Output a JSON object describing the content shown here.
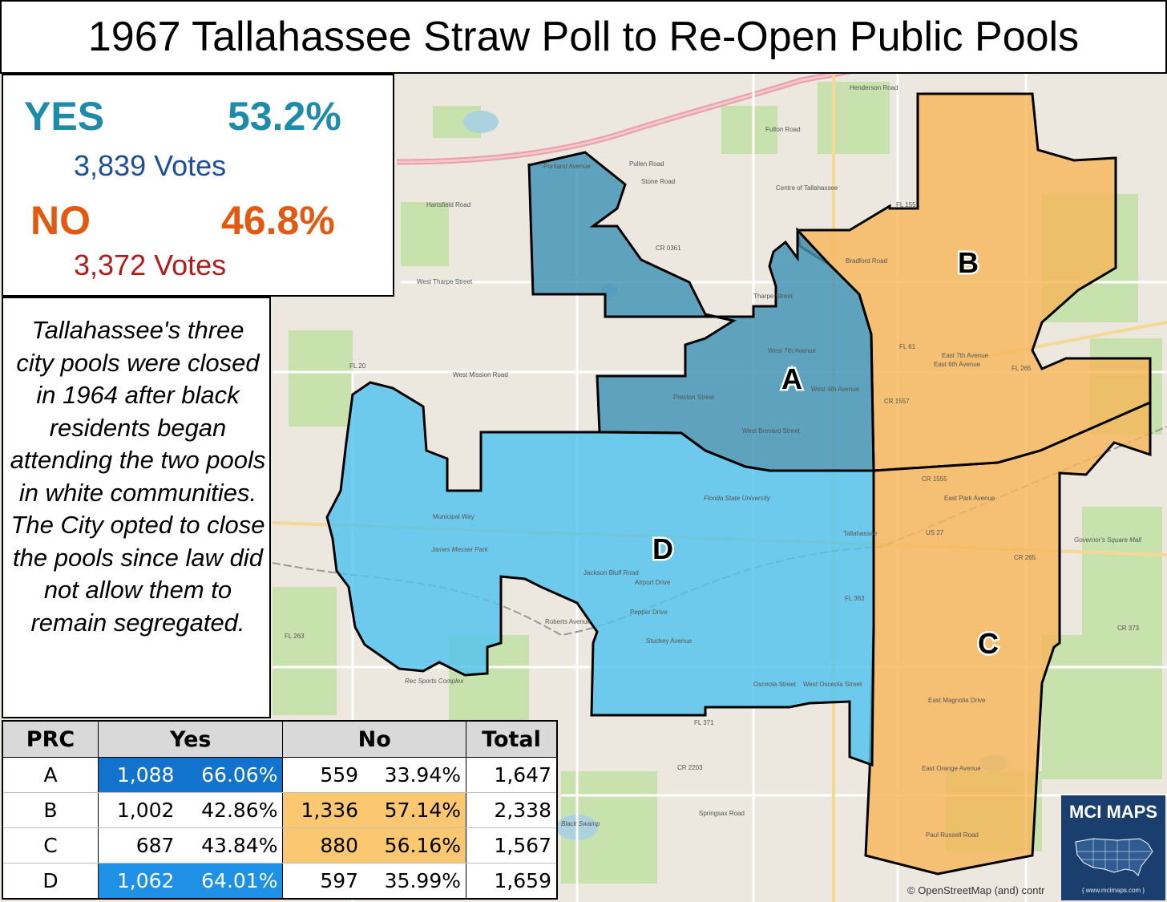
{
  "title": "1967 Tallahassee Straw Poll to Re-Open Public Pools",
  "results": {
    "yes": {
      "label": "YES",
      "percent": "53.2%",
      "votes": "3,839 Votes",
      "color": "#1f8bab"
    },
    "no": {
      "label": "NO",
      "percent": "46.8%",
      "votes": "3,372 Votes",
      "color": "#e25a12"
    }
  },
  "note": "Tallahassee's three city pools were closed in 1964 after black residents began attending the two pools in white communities. The City opted to close the pools since law did not allow them to remain segregated.",
  "table": {
    "headers": {
      "prc": "PRC",
      "yes": "Yes",
      "no": "No",
      "total": "Total"
    },
    "rows": [
      {
        "prc": "A",
        "yes_votes": "1,088",
        "yes_pct": "66.06%",
        "no_votes": "559",
        "no_pct": "33.94%",
        "total": "1,647"
      },
      {
        "prc": "B",
        "yes_votes": "1,002",
        "yes_pct": "42.86%",
        "no_votes": "1,336",
        "no_pct": "57.14%",
        "total": "2,338"
      },
      {
        "prc": "C",
        "yes_votes": "687",
        "yes_pct": "43.84%",
        "no_votes": "880",
        "no_pct": "56.16%",
        "total": "1,567"
      },
      {
        "prc": "D",
        "yes_votes": "1,062",
        "yes_pct": "64.01%",
        "no_votes": "597",
        "no_pct": "35.99%",
        "total": "1,659"
      }
    ]
  },
  "precincts": {
    "A": {
      "label": "A",
      "result": "yes",
      "color": "#3f92b4"
    },
    "B": {
      "label": "B",
      "result": "no",
      "color": "#f6b75a"
    },
    "C": {
      "label": "C",
      "result": "no",
      "color": "#f6b75a"
    },
    "D": {
      "label": "D",
      "result": "yes",
      "color": "#52c3ee"
    }
  },
  "map_labels": {
    "henderson": "Henderson Road",
    "fulton": "Fulton Road",
    "pullen": "Pullen Road",
    "stone": "Stone Road",
    "centre": "Centre of Tallahassee",
    "hartsfield": "Hartsfield Road",
    "portland": "Portland Avenue",
    "west_tharpe": "West Tharpe Street",
    "tharpe": "Tharpe Street",
    "bradford": "Bradford Road",
    "cr0361": "CR 0361",
    "west_mission": "West Mission Road",
    "west_7th": "West 7th Avenue",
    "west_4th": "West 4th Avenue",
    "preston": "Preston Street",
    "west_brevard": "West Brevard Street",
    "east_7th": "East 7th Avenue",
    "east_6th": "East 6th Avenue",
    "fsu": "Florida State University",
    "tallahassee": "Tallahassee",
    "municipal": "Municipal Way",
    "james_messer": "James Messer Park",
    "jackson_bluff": "Jackson Bluff Road",
    "airport": "Airport Drive",
    "pepper": "Pepper Drive",
    "roberts": "Roberts Avenue",
    "stuckey": "Stuckey Avenue",
    "osceola": "Osceola Street",
    "west_osceola": "West Osceola Street",
    "east_park": "East Park Avenue",
    "east_magnolia": "East Magnolia Drive",
    "east_orange": "East Orange Avenue",
    "paul_russell": "Paul Russell Road",
    "springsax": "Springsax Road",
    "governors_square": "Governor's Square Mall",
    "rec_sports": "Rec Sports Complex",
    "black_swamp": "Black Swamp",
    "cr1555": "CR 1555",
    "cr1557": "CR 1557",
    "fl61": "FL 61",
    "fl265": "FL 265",
    "fl20": "FL 20",
    "fl263": "FL 263",
    "fl363": "FL 363",
    "fl371": "FL 371",
    "cr2203": "CR 2203",
    "cr265": "CR 265",
    "cr373": "CR 373",
    "us27": "US 27",
    "fl155": "FL 155"
  },
  "brand": {
    "name": "MCI MAPS",
    "url": "{ www.mcimaps.com }"
  },
  "attribution": "© OpenStreetMap (and) contr"
}
